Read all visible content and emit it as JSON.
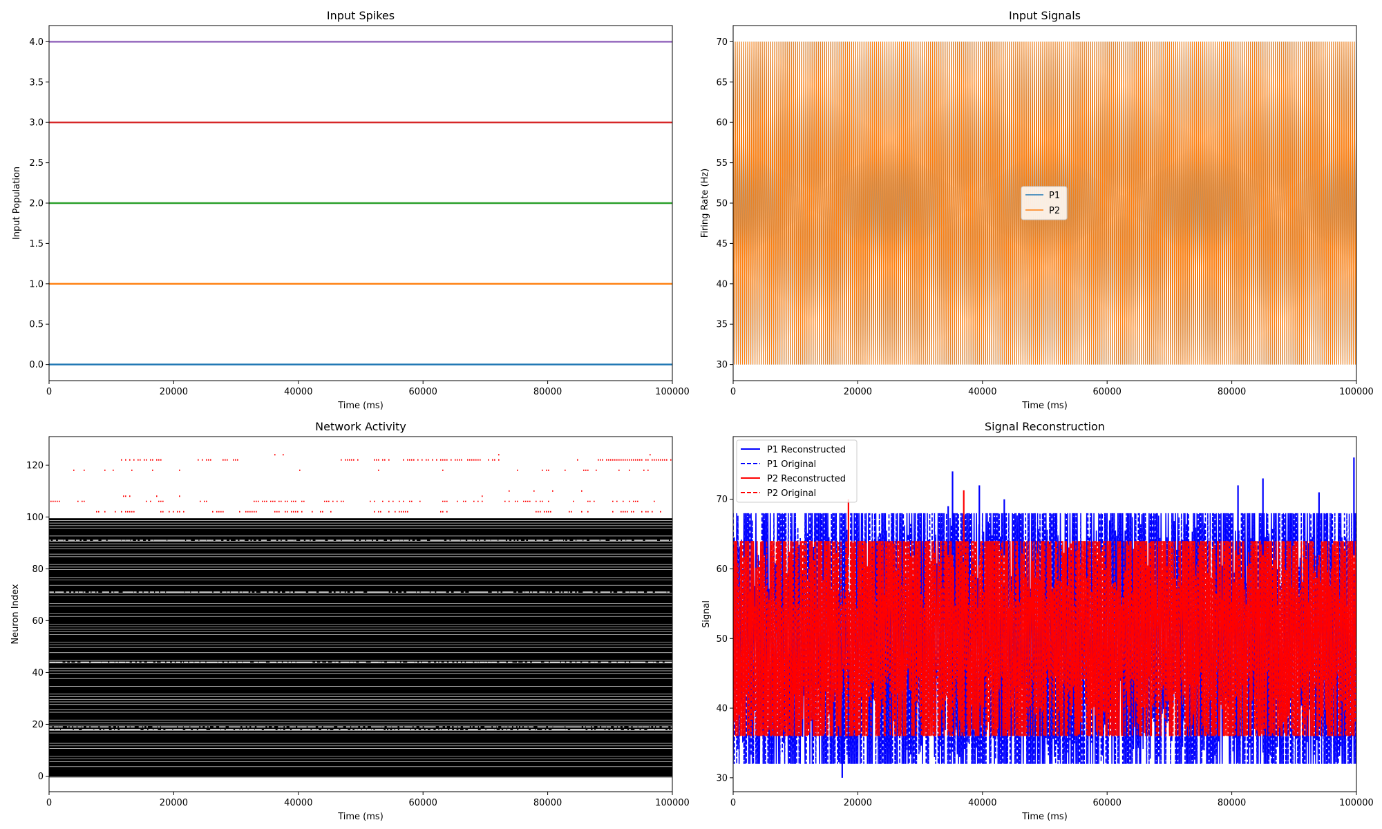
{
  "chart_data": [
    {
      "id": "input_spikes",
      "type": "scatter",
      "title": "Input Spikes",
      "xlabel": "Time (ms)",
      "ylabel": "Input Population",
      "xlim": [
        0,
        100000
      ],
      "ylim": [
        -0.2,
        4.2
      ],
      "xticks": [
        0,
        20000,
        40000,
        60000,
        80000,
        100000
      ],
      "yticks": [
        "0.0",
        "0.5",
        "1.0",
        "1.5",
        "2.0",
        "2.5",
        "3.0",
        "3.5",
        "4.0"
      ],
      "grid": false,
      "series": [
        {
          "y": 0,
          "x_range": [
            0,
            100000
          ],
          "color": "#1f77b4"
        },
        {
          "y": 1,
          "x_range": [
            0,
            100000
          ],
          "color": "#ff7f0e"
        },
        {
          "y": 2,
          "x_range": [
            0,
            100000
          ],
          "color": "#2ca02c"
        },
        {
          "y": 3,
          "x_range": [
            0,
            100000
          ],
          "color": "#d62728"
        },
        {
          "y": 4,
          "x_range": [
            0,
            100000
          ],
          "color": "#9467bd"
        }
      ]
    },
    {
      "id": "input_signals",
      "type": "line",
      "title": "Input Signals",
      "xlabel": "Time (ms)",
      "ylabel": "Firing Rate (Hz)",
      "xlim": [
        0,
        100000
      ],
      "ylim": [
        28,
        72
      ],
      "xticks": [
        0,
        20000,
        40000,
        60000,
        80000,
        100000
      ],
      "yticks": [
        30,
        35,
        40,
        45,
        50,
        55,
        60,
        65,
        70
      ],
      "grid": false,
      "legend": "center-right",
      "series": [
        {
          "name": "P1",
          "color": "#1f77b4",
          "min": 30,
          "max": 70,
          "cycles": 300,
          "x_range": [
            0,
            100000
          ]
        },
        {
          "name": "P2",
          "color": "#ff7f0e",
          "min": 30,
          "max": 70,
          "cycles": 300,
          "x_range": [
            0,
            100000
          ]
        }
      ]
    },
    {
      "id": "network_activity",
      "type": "scatter",
      "title": "Network Activity",
      "xlabel": "Time (ms)",
      "ylabel": "Neuron Index",
      "xlim": [
        0,
        100000
      ],
      "ylim": [
        -6,
        131
      ],
      "xticks": [
        0,
        20000,
        40000,
        60000,
        80000,
        100000
      ],
      "yticks": [
        0,
        20,
        40,
        60,
        80,
        100,
        120
      ],
      "grid": false,
      "excitatory": {
        "color": "#000000",
        "neurons": [
          0,
          99
        ]
      },
      "inhibitory": {
        "color": "#ff0000",
        "neurons": [
          102,
          106,
          108,
          110,
          118,
          122,
          124
        ]
      }
    },
    {
      "id": "signal_reconstruction",
      "type": "line",
      "title": "Signal Reconstruction",
      "xlabel": "Time (ms)",
      "ylabel": "Signal",
      "xlim": [
        0,
        100000
      ],
      "ylim": [
        28,
        79
      ],
      "xticks": [
        0,
        20000,
        40000,
        60000,
        80000,
        100000
      ],
      "yticks": [
        30,
        40,
        50,
        60,
        70
      ],
      "grid": false,
      "legend": "top-left",
      "series": [
        {
          "name": "P1 Reconstructed",
          "color": "#0000ff",
          "style": "solid",
          "min": 32,
          "max": 68
        },
        {
          "name": "P1 Original",
          "color": "#0000ff",
          "style": "dashed",
          "min": 32,
          "max": 68
        },
        {
          "name": "P2 Reconstructed",
          "color": "#ff0000",
          "style": "solid",
          "min": 36,
          "max": 64
        },
        {
          "name": "P2 Original",
          "color": "#ff0000",
          "style": "dashed",
          "min": 36,
          "max": 64
        }
      ],
      "spikes": [
        {
          "x": 5000,
          "y": 67
        },
        {
          "x": 17500,
          "y": 30
        },
        {
          "x": 18500,
          "y": 70
        },
        {
          "x": 34500,
          "y": 69
        },
        {
          "x": 35200,
          "y": 74
        },
        {
          "x": 37000,
          "y": 71.3
        },
        {
          "x": 39500,
          "y": 72
        },
        {
          "x": 43500,
          "y": 70
        },
        {
          "x": 81000,
          "y": 72
        },
        {
          "x": 85000,
          "y": 73
        },
        {
          "x": 94000,
          "y": 71
        },
        {
          "x": 99600,
          "y": 76
        }
      ]
    }
  ]
}
